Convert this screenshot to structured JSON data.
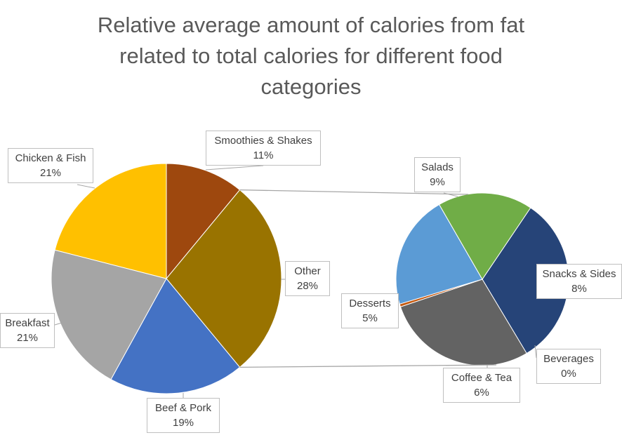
{
  "chart_data": {
    "type": "pie",
    "subtype": "pie-of-pie",
    "title_lines": [
      "Relative average amount of calories from fat",
      "related to total calories for different food",
      "categories"
    ],
    "primary": {
      "slices": [
        {
          "label": "Smoothies & Shakes",
          "value": 11,
          "display": "11%",
          "color": "#9E480E"
        },
        {
          "label": "Other",
          "value": 28,
          "display": "28%",
          "color": "#997300"
        },
        {
          "label": "Beef & Pork",
          "value": 19,
          "display": "19%",
          "color": "#4472C4"
        },
        {
          "label": "Breakfast",
          "value": 21,
          "display": "21%",
          "color": "#A5A5A5"
        },
        {
          "label": "Chicken & Fish",
          "value": 21,
          "display": "21%",
          "color": "#FFC000"
        }
      ]
    },
    "secondary": {
      "slices": [
        {
          "label": "Salads",
          "value": 9,
          "display": "9%",
          "color": "#264478"
        },
        {
          "label": "Snacks & Sides",
          "value": 8,
          "display": "8%",
          "color": "#636363"
        },
        {
          "label": "Beverages",
          "value": 0.15,
          "display": "0%",
          "color": "#C55A11"
        },
        {
          "label": "Coffee & Tea",
          "value": 6,
          "display": "6%",
          "color": "#5B9BD5"
        },
        {
          "label": "Desserts",
          "value": 5,
          "display": "5%",
          "color": "#70AD47"
        }
      ]
    },
    "legend": "none"
  }
}
